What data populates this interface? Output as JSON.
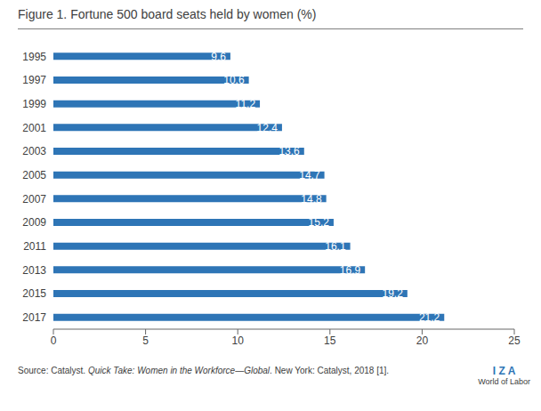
{
  "chart_data": {
    "type": "bar",
    "title": "Figure 1. Fortune 500 board seats held by women (%)",
    "orientation": "horizontal",
    "categories": [
      "2017",
      "2015",
      "2013",
      "2011",
      "2009",
      "2007",
      "2005",
      "2003",
      "2001",
      "1999",
      "1997",
      "1995"
    ],
    "values": [
      21.2,
      19.2,
      16.9,
      16.1,
      15.2,
      14.8,
      14.7,
      13.6,
      12.4,
      11.2,
      10.6,
      9.6
    ],
    "color": "#2E75B6",
    "xlim": [
      0,
      25
    ],
    "xticks": [
      0,
      5,
      10,
      15,
      20,
      25
    ],
    "grid": false,
    "data_labels": true,
    "annotations": [
      "Source",
      ": Catalyst. ",
      "Quick Take: Women in the Workforce—Global",
      ". New York: Catalyst, 2018 [1].",
      "I Z A",
      "World of Labor"
    ]
  }
}
